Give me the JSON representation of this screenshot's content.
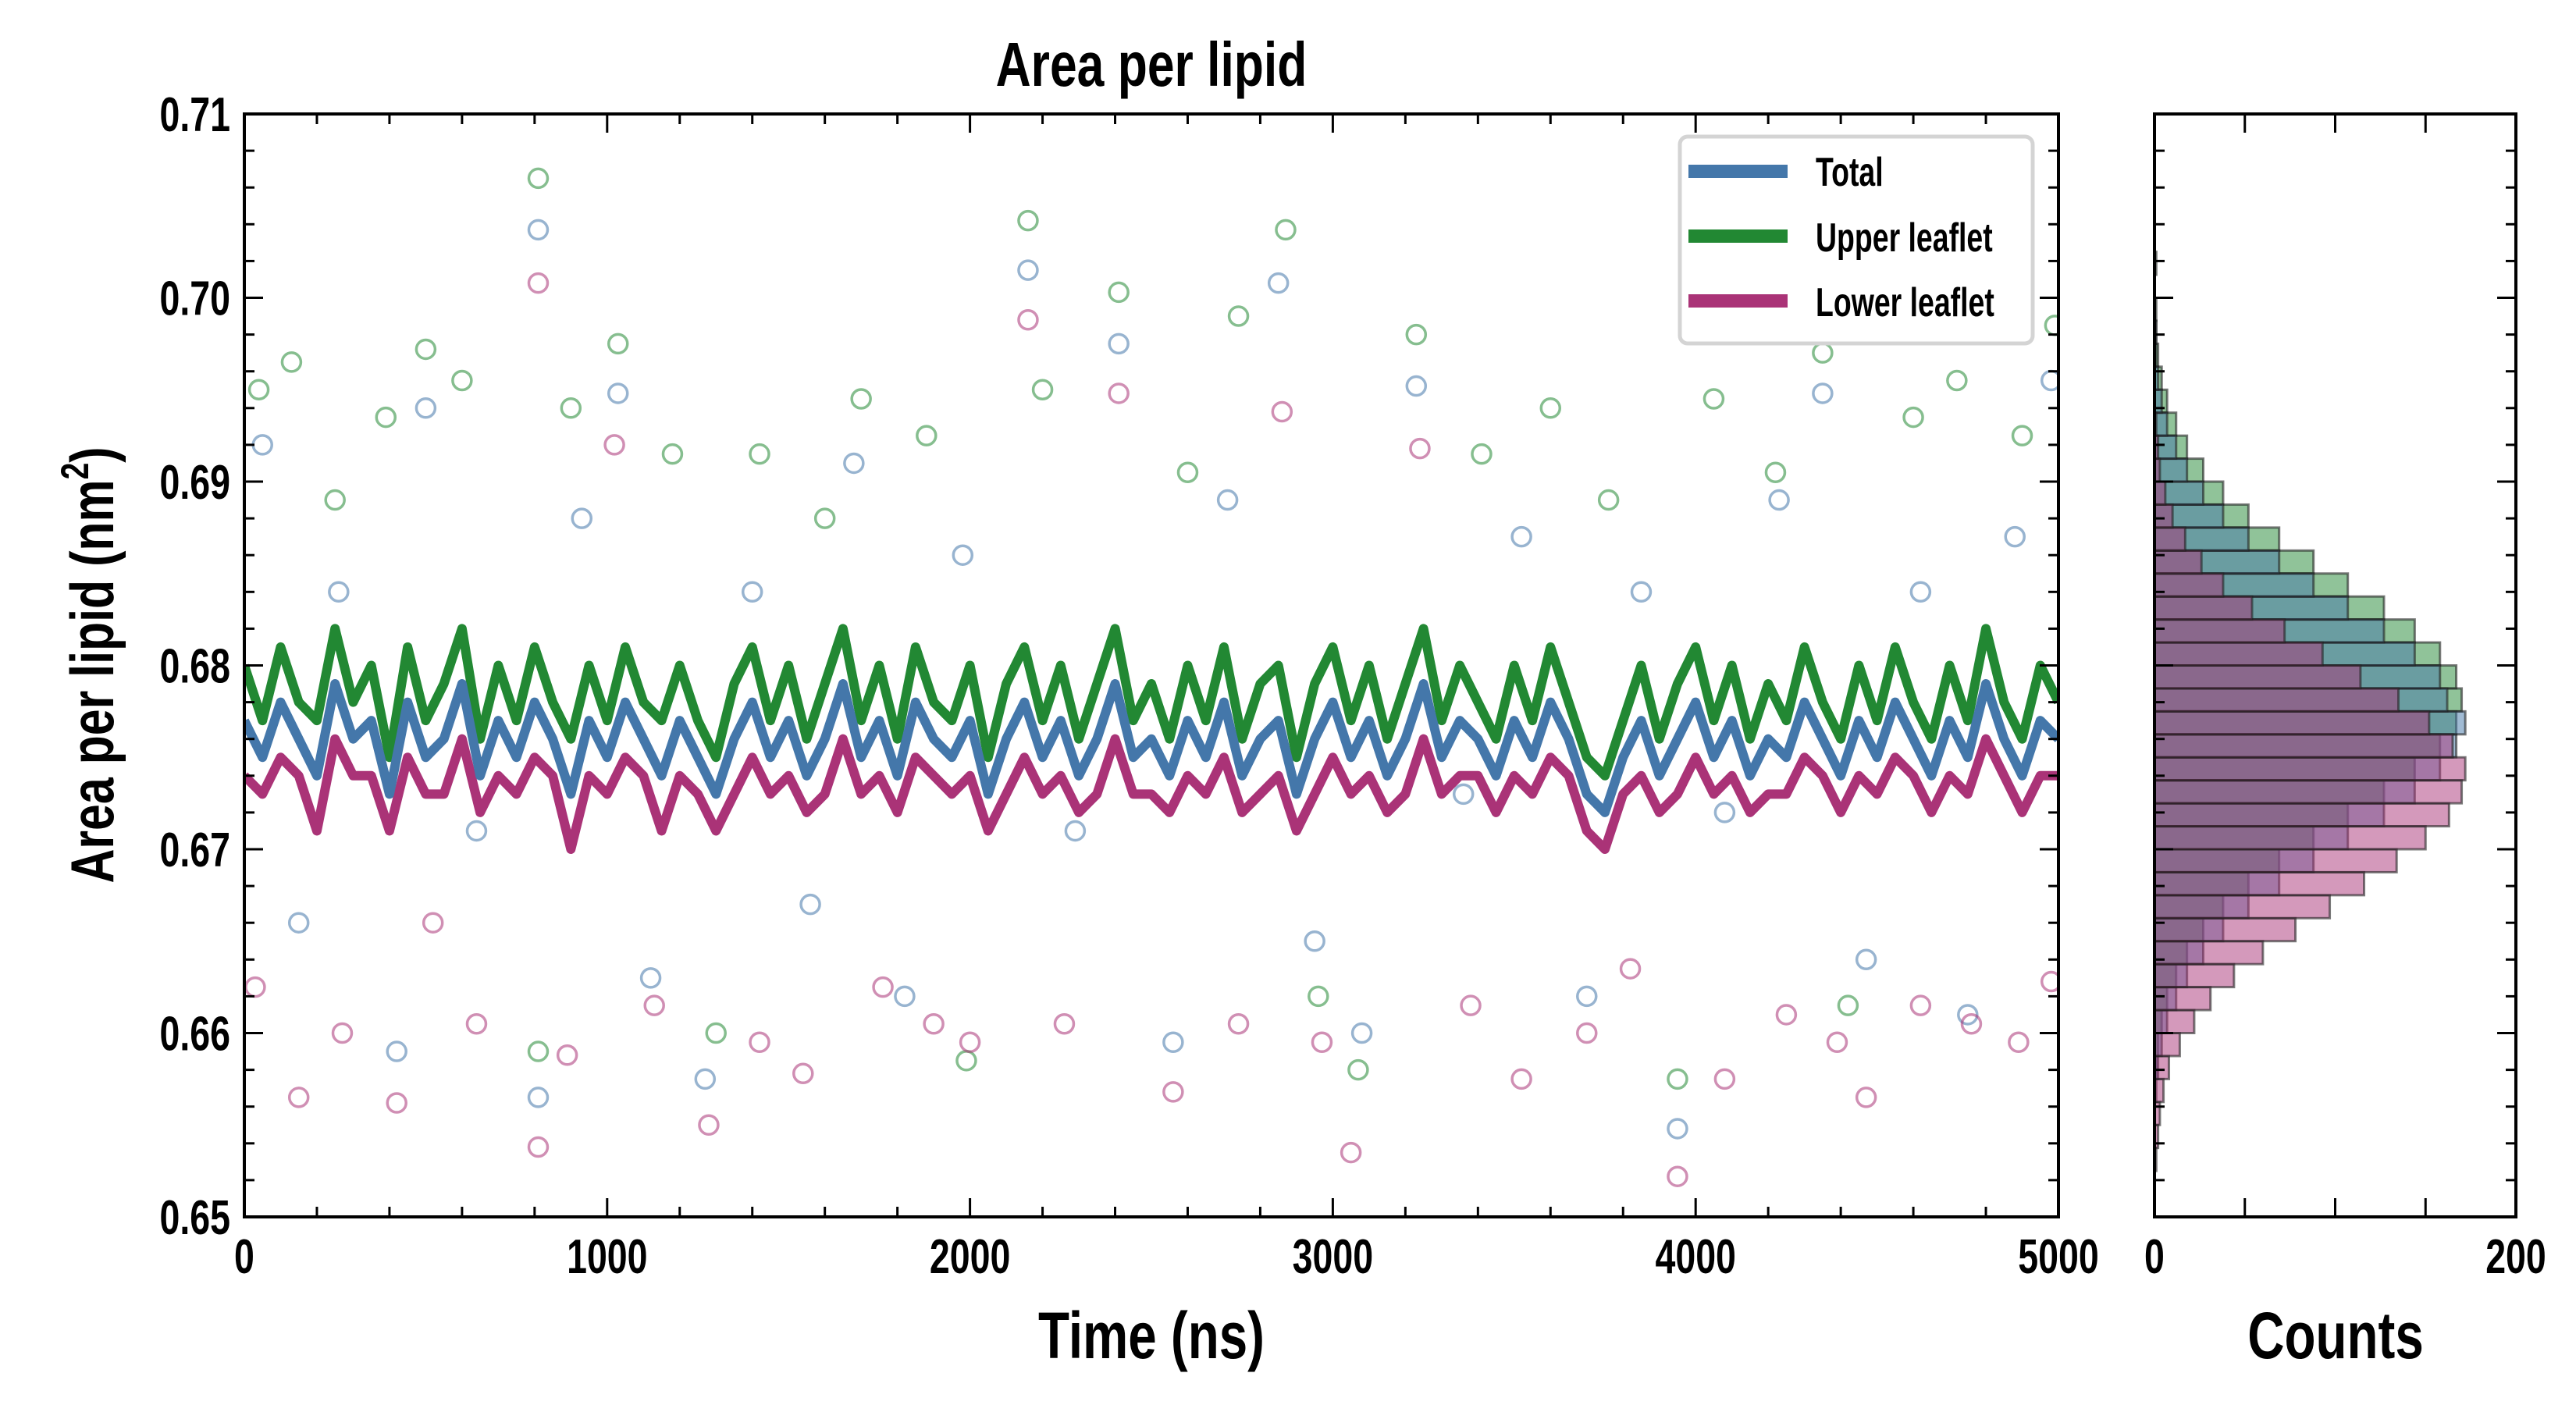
{
  "chart_data": [
    {
      "type": "line",
      "title": "Area per lipid",
      "xlabel": "Time (ns)",
      "ylabel": "Area per lipid (nm",
      "ylabel_sup": "2",
      "ylabel_close": ")",
      "xlim": [
        0,
        5000
      ],
      "ylim": [
        0.65,
        0.71
      ],
      "xticks": [
        "0",
        "1000",
        "2000",
        "3000",
        "4000",
        "5000"
      ],
      "yticks": [
        "0.65",
        "0.66",
        "0.67",
        "0.68",
        "0.69",
        "0.70",
        "0.71"
      ],
      "legend_position": "top-right",
      "x_step": 50,
      "series": [
        {
          "name": "Total",
          "color": "#4477aa",
          "values": [
            0.677,
            0.675,
            0.678,
            0.676,
            0.674,
            0.679,
            0.676,
            0.677,
            0.673,
            0.678,
            0.675,
            0.676,
            0.679,
            0.674,
            0.677,
            0.675,
            0.678,
            0.676,
            0.673,
            0.677,
            0.675,
            0.678,
            0.676,
            0.674,
            0.677,
            0.675,
            0.673,
            0.676,
            0.678,
            0.675,
            0.677,
            0.674,
            0.676,
            0.679,
            0.675,
            0.677,
            0.674,
            0.678,
            0.676,
            0.675,
            0.677,
            0.673,
            0.676,
            0.678,
            0.675,
            0.677,
            0.674,
            0.676,
            0.679,
            0.675,
            0.676,
            0.674,
            0.677,
            0.675,
            0.678,
            0.674,
            0.676,
            0.677,
            0.673,
            0.676,
            0.678,
            0.675,
            0.677,
            0.674,
            0.676,
            0.679,
            0.675,
            0.677,
            0.676,
            0.674,
            0.677,
            0.675,
            0.678,
            0.676,
            0.673,
            0.672,
            0.675,
            0.677,
            0.674,
            0.676,
            0.678,
            0.675,
            0.677,
            0.674,
            0.676,
            0.675,
            0.678,
            0.676,
            0.674,
            0.677,
            0.675,
            0.678,
            0.676,
            0.674,
            0.677,
            0.675,
            0.679,
            0.676,
            0.674,
            0.677,
            0.676
          ]
        },
        {
          "name": "Upper leaflet",
          "color": "#228833",
          "values": [
            0.68,
            0.677,
            0.681,
            0.678,
            0.677,
            0.682,
            0.678,
            0.68,
            0.675,
            0.681,
            0.677,
            0.679,
            0.682,
            0.676,
            0.68,
            0.677,
            0.681,
            0.678,
            0.676,
            0.68,
            0.677,
            0.681,
            0.678,
            0.677,
            0.68,
            0.677,
            0.675,
            0.679,
            0.681,
            0.677,
            0.68,
            0.676,
            0.679,
            0.682,
            0.677,
            0.68,
            0.676,
            0.681,
            0.678,
            0.677,
            0.68,
            0.675,
            0.679,
            0.681,
            0.677,
            0.68,
            0.676,
            0.679,
            0.682,
            0.677,
            0.679,
            0.676,
            0.68,
            0.677,
            0.681,
            0.676,
            0.679,
            0.68,
            0.675,
            0.679,
            0.681,
            0.677,
            0.68,
            0.676,
            0.679,
            0.682,
            0.677,
            0.68,
            0.678,
            0.676,
            0.68,
            0.677,
            0.681,
            0.678,
            0.675,
            0.674,
            0.677,
            0.68,
            0.676,
            0.679,
            0.681,
            0.677,
            0.68,
            0.676,
            0.679,
            0.677,
            0.681,
            0.678,
            0.676,
            0.68,
            0.677,
            0.681,
            0.678,
            0.676,
            0.68,
            0.677,
            0.682,
            0.678,
            0.676,
            0.68,
            0.678
          ]
        },
        {
          "name": "Lower leaflet",
          "color": "#aa3377",
          "values": [
            0.674,
            0.673,
            0.675,
            0.674,
            0.671,
            0.676,
            0.674,
            0.674,
            0.671,
            0.675,
            0.673,
            0.673,
            0.676,
            0.672,
            0.674,
            0.673,
            0.675,
            0.674,
            0.67,
            0.674,
            0.673,
            0.675,
            0.674,
            0.671,
            0.674,
            0.673,
            0.671,
            0.673,
            0.675,
            0.673,
            0.674,
            0.672,
            0.673,
            0.676,
            0.673,
            0.674,
            0.672,
            0.675,
            0.674,
            0.673,
            0.674,
            0.671,
            0.673,
            0.675,
            0.673,
            0.674,
            0.672,
            0.673,
            0.676,
            0.673,
            0.673,
            0.672,
            0.674,
            0.673,
            0.675,
            0.672,
            0.673,
            0.674,
            0.671,
            0.673,
            0.675,
            0.673,
            0.674,
            0.672,
            0.673,
            0.676,
            0.673,
            0.674,
            0.674,
            0.672,
            0.674,
            0.673,
            0.675,
            0.674,
            0.671,
            0.67,
            0.673,
            0.674,
            0.672,
            0.673,
            0.675,
            0.673,
            0.674,
            0.672,
            0.673,
            0.673,
            0.675,
            0.674,
            0.672,
            0.674,
            0.673,
            0.675,
            0.674,
            0.672,
            0.674,
            0.673,
            0.676,
            0.674,
            0.672,
            0.674,
            0.674
          ]
        }
      ],
      "scatter": [
        {
          "name": "Total",
          "color": "#4477aa",
          "points": [
            [
              50,
              0.692
            ],
            [
              150,
              0.666
            ],
            [
              260,
              0.684
            ],
            [
              420,
              0.659
            ],
            [
              500,
              0.694
            ],
            [
              640,
              0.671
            ],
            [
              810,
              0.7037
            ],
            [
              810,
              0.6565
            ],
            [
              930,
              0.688
            ],
            [
              1030,
              0.6948
            ],
            [
              1120,
              0.663
            ],
            [
              1270,
              0.6575
            ],
            [
              1400,
              0.684
            ],
            [
              1560,
              0.667
            ],
            [
              1680,
              0.691
            ],
            [
              1820,
              0.662
            ],
            [
              1980,
              0.686
            ],
            [
              2160,
              0.7015
            ],
            [
              2290,
              0.671
            ],
            [
              2410,
              0.6975
            ],
            [
              2560,
              0.6595
            ],
            [
              2710,
              0.689
            ],
            [
              2850,
              0.7008
            ],
            [
              2950,
              0.665
            ],
            [
              3080,
              0.66
            ],
            [
              3230,
              0.6952
            ],
            [
              3360,
              0.673
            ],
            [
              3520,
              0.687
            ],
            [
              3700,
              0.662
            ],
            [
              3850,
              0.684
            ],
            [
              3950,
              0.6548
            ],
            [
              4080,
              0.672
            ],
            [
              4230,
              0.689
            ],
            [
              4350,
              0.6948
            ],
            [
              4470,
              0.664
            ],
            [
              4620,
              0.684
            ],
            [
              4750,
              0.661
            ],
            [
              4880,
              0.687
            ],
            [
              4980,
              0.6955
            ]
          ]
        },
        {
          "name": "Upper leaflet",
          "color": "#228833",
          "points": [
            [
              40,
              0.695
            ],
            [
              130,
              0.6965
            ],
            [
              250,
              0.689
            ],
            [
              390,
              0.6935
            ],
            [
              500,
              0.6972
            ],
            [
              600,
              0.6955
            ],
            [
              810,
              0.7065
            ],
            [
              810,
              0.659
            ],
            [
              900,
              0.694
            ],
            [
              1030,
              0.6975
            ],
            [
              1180,
              0.6915
            ],
            [
              1300,
              0.66
            ],
            [
              1420,
              0.6915
            ],
            [
              1600,
              0.688
            ],
            [
              1700,
              0.6945
            ],
            [
              1880,
              0.6925
            ],
            [
              1990,
              0.6585
            ],
            [
              2160,
              0.7042
            ],
            [
              2200,
              0.695
            ],
            [
              2410,
              0.7003
            ],
            [
              2600,
              0.6905
            ],
            [
              2740,
              0.699
            ],
            [
              2870,
              0.7037
            ],
            [
              2960,
              0.662
            ],
            [
              3070,
              0.658
            ],
            [
              3230,
              0.698
            ],
            [
              3410,
              0.6915
            ],
            [
              3600,
              0.694
            ],
            [
              3760,
              0.689
            ],
            [
              3950,
              0.6575
            ],
            [
              4050,
              0.6945
            ],
            [
              4220,
              0.6905
            ],
            [
              4350,
              0.697
            ],
            [
              4420,
              0.6615
            ],
            [
              4600,
              0.6935
            ],
            [
              4720,
              0.6955
            ],
            [
              4900,
              0.6925
            ],
            [
              4990,
              0.6985
            ]
          ]
        },
        {
          "name": "Lower leaflet",
          "color": "#aa3377",
          "points": [
            [
              30,
              0.6625
            ],
            [
              150,
              0.6565
            ],
            [
              270,
              0.66
            ],
            [
              420,
              0.6562
            ],
            [
              520,
              0.666
            ],
            [
              640,
              0.6605
            ],
            [
              810,
              0.7008
            ],
            [
              810,
              0.6538
            ],
            [
              890,
              0.6588
            ],
            [
              1020,
              0.692
            ],
            [
              1130,
              0.6615
            ],
            [
              1280,
              0.655
            ],
            [
              1420,
              0.6595
            ],
            [
              1540,
              0.6578
            ],
            [
              1760,
              0.6625
            ],
            [
              1900,
              0.6605
            ],
            [
              2000,
              0.6595
            ],
            [
              2160,
              0.6988
            ],
            [
              2260,
              0.6605
            ],
            [
              2410,
              0.6948
            ],
            [
              2560,
              0.6568
            ],
            [
              2740,
              0.6605
            ],
            [
              2860,
              0.6938
            ],
            [
              2970,
              0.6595
            ],
            [
              3050,
              0.6535
            ],
            [
              3240,
              0.6918
            ],
            [
              3380,
              0.6615
            ],
            [
              3520,
              0.6575
            ],
            [
              3700,
              0.66
            ],
            [
              3820,
              0.6635
            ],
            [
              3950,
              0.6522
            ],
            [
              4080,
              0.6575
            ],
            [
              4250,
              0.661
            ],
            [
              4390,
              0.6595
            ],
            [
              4470,
              0.6565
            ],
            [
              4620,
              0.6615
            ],
            [
              4760,
              0.6605
            ],
            [
              4890,
              0.6595
            ],
            [
              4980,
              0.6628
            ]
          ]
        }
      ]
    },
    {
      "type": "bar",
      "orientation": "horizontal",
      "xlabel": "Counts",
      "xlim": [
        0,
        200
      ],
      "xticks": [
        "0",
        "200"
      ],
      "ylim": [
        0.65,
        0.71
      ],
      "bin_start": 0.65,
      "bin_width": 0.00125,
      "series": [
        {
          "name": "Upper leaflet",
          "color": "#228833",
          "counts": [
            0,
            0,
            0,
            0,
            0,
            0,
            1,
            2,
            4,
            7,
            12,
            18,
            27,
            38,
            52,
            69,
            88,
            107,
            127,
            144,
            158,
            167,
            170,
            167,
            158,
            144,
            127,
            107,
            88,
            69,
            52,
            38,
            27,
            18,
            12,
            7,
            4,
            2,
            1,
            1,
            0,
            1,
            0,
            0,
            0
          ]
        },
        {
          "name": "Total",
          "color": "#4477aa",
          "counts": [
            0,
            0,
            0,
            0,
            0,
            1,
            2,
            4,
            7,
            12,
            18,
            27,
            38,
            52,
            69,
            88,
            107,
            127,
            144,
            158,
            167,
            172,
            162,
            158,
            144,
            127,
            107,
            88,
            69,
            52,
            38,
            27,
            18,
            12,
            7,
            4,
            2,
            1,
            1,
            0,
            0,
            0,
            0,
            0,
            0
          ]
        },
        {
          "name": "Lower leaflet",
          "color": "#aa3377",
          "counts": [
            0,
            0,
            1,
            2,
            3,
            5,
            8,
            14,
            22,
            31,
            44,
            60,
            78,
            97,
            116,
            134,
            150,
            163,
            170,
            172,
            165,
            152,
            135,
            114,
            93,
            72,
            54,
            38,
            26,
            17,
            10,
            6,
            3,
            2,
            1,
            0,
            0,
            0,
            0,
            0,
            0,
            0,
            0,
            0,
            0
          ]
        }
      ]
    }
  ],
  "legend": [
    {
      "label": "Total",
      "color": "#4477aa"
    },
    {
      "label": "Upper leaflet",
      "color": "#228833"
    },
    {
      "label": "Lower leaflet",
      "color": "#aa3377"
    }
  ]
}
